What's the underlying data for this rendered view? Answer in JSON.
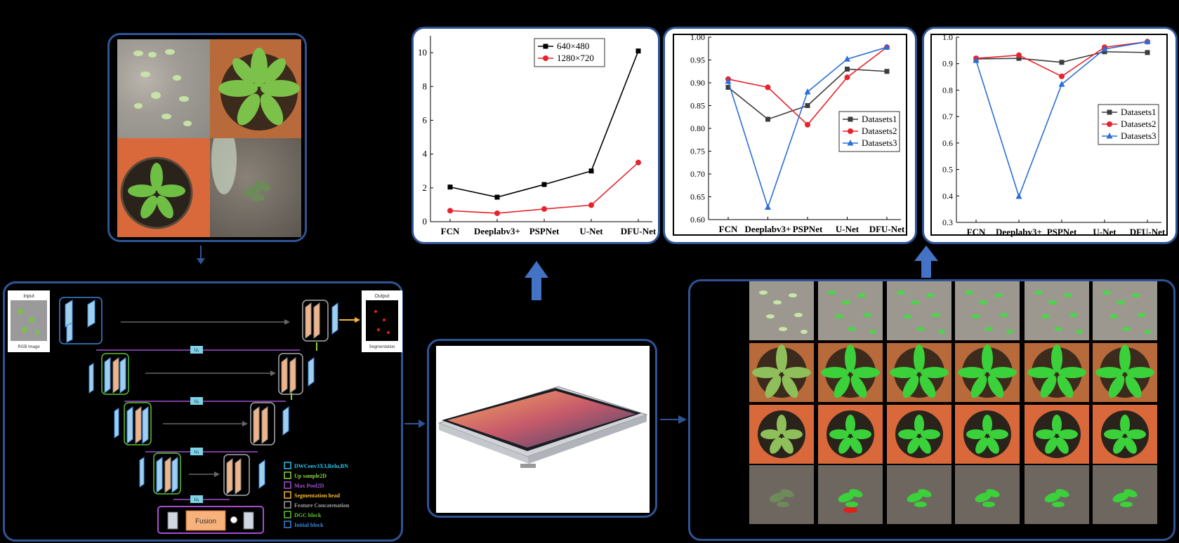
{
  "charts": {
    "runtime": {
      "categories": [
        "FCN",
        "Deeplabv3+",
        "PSPNet",
        "U-Net",
        "DFU-Net"
      ],
      "yticks": [
        "0",
        "2",
        "4",
        "6",
        "8",
        "10"
      ],
      "series": [
        {
          "name": "640×480",
          "color": "#000000",
          "marker": "square",
          "values": [
            2.05,
            1.45,
            2.2,
            3.0,
            10.1
          ]
        },
        {
          "name": "1280×720",
          "color": "#e8222b",
          "marker": "circle",
          "values": [
            0.65,
            0.5,
            0.75,
            0.98,
            3.5
          ]
        }
      ],
      "ylim": [
        0,
        11
      ]
    },
    "miou": {
      "categories": [
        "FCN",
        "Deeplabv3+",
        "PSPNet",
        "U-Net",
        "DFU-Net"
      ],
      "yticks": [
        "0.60",
        "0.65",
        "0.70",
        "0.75",
        "0.80",
        "0.85",
        "0.90",
        "0.95",
        "1.00"
      ],
      "series": [
        {
          "name": "Datasets1",
          "color": "#3c3c3c",
          "marker": "square",
          "values": [
            0.89,
            0.82,
            0.85,
            0.93,
            0.925
          ]
        },
        {
          "name": "Datasets2",
          "color": "#e8222b",
          "marker": "circle",
          "values": [
            0.908,
            0.89,
            0.808,
            0.912,
            0.978
          ]
        },
        {
          "name": "Datasets3",
          "color": "#2a6fd6",
          "marker": "triangle",
          "values": [
            0.903,
            0.627,
            0.88,
            0.952,
            0.978
          ]
        }
      ],
      "ylim": [
        0.6,
        1.0
      ]
    },
    "f1": {
      "categories": [
        "FCN",
        "Deeplabv3+",
        "PSPNet",
        "U-Net",
        "DFU-Net"
      ],
      "yticks": [
        "0.3",
        "0.4",
        "0.5",
        "0.6",
        "0.7",
        "0.8",
        "0.9",
        "1.0"
      ],
      "series": [
        {
          "name": "Datasets1",
          "color": "#3c3c3c",
          "marker": "square",
          "values": [
            0.918,
            0.92,
            0.905,
            0.945,
            0.942
          ]
        },
        {
          "name": "Datasets2",
          "color": "#e8222b",
          "marker": "circle",
          "values": [
            0.92,
            0.932,
            0.852,
            0.962,
            0.983
          ]
        },
        {
          "name": "Datasets3",
          "color": "#2a6fd6",
          "marker": "triangle",
          "values": [
            0.912,
            0.398,
            0.822,
            0.955,
            0.983
          ]
        }
      ],
      "ylim": [
        0.3,
        1.0
      ]
    }
  },
  "architecture": {
    "input_title": "Input",
    "input_caption": "RGB Image",
    "output_title": "Output",
    "output_caption": "Segmentation",
    "fusion_label": "Fusion",
    "skip_labels": [
      "U₁",
      "U₂",
      "U₃",
      "U₄"
    ],
    "legend": [
      {
        "label": "DWConv3X3,Relu,BN",
        "color": "#27c6f0"
      },
      {
        "label": "Up sample2D",
        "color": "#8ad53a"
      },
      {
        "label": "Max Pool2D",
        "color": "#a34fd4"
      },
      {
        "label": "Segmentation head",
        "color": "#f7b731"
      },
      {
        "label": "Feature Concatenation",
        "color": "#a0a0a0"
      },
      {
        "label": "DGC block",
        "color": "#5fc22e"
      },
      {
        "label": "Initial block",
        "color": "#3a86d8"
      }
    ]
  }
}
